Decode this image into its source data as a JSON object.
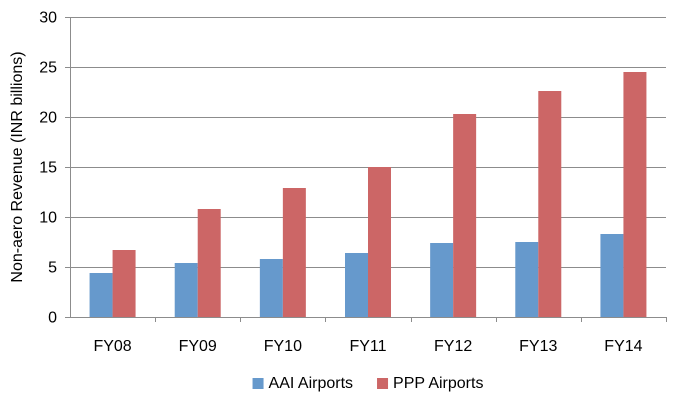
{
  "chart_data": {
    "type": "bar",
    "title": "",
    "xlabel": "",
    "ylabel": "Non-aero Revenue (INR billions)",
    "ylim": [
      0,
      30
    ],
    "yticks": [
      0,
      5,
      10,
      15,
      20,
      25,
      30
    ],
    "grid": true,
    "legend_position": "bottom",
    "categories": [
      "FY08",
      "FY09",
      "FY10",
      "FY11",
      "FY12",
      "FY13",
      "FY14"
    ],
    "series": [
      {
        "name": "AAI Airports",
        "color": "#6699CC",
        "values": [
          4.4,
          5.4,
          5.8,
          6.4,
          7.4,
          7.5,
          8.3
        ]
      },
      {
        "name": "PPP Airports",
        "color": "#CC6666",
        "values": [
          6.7,
          10.8,
          12.9,
          15.0,
          20.3,
          22.6,
          24.5
        ]
      }
    ]
  }
}
